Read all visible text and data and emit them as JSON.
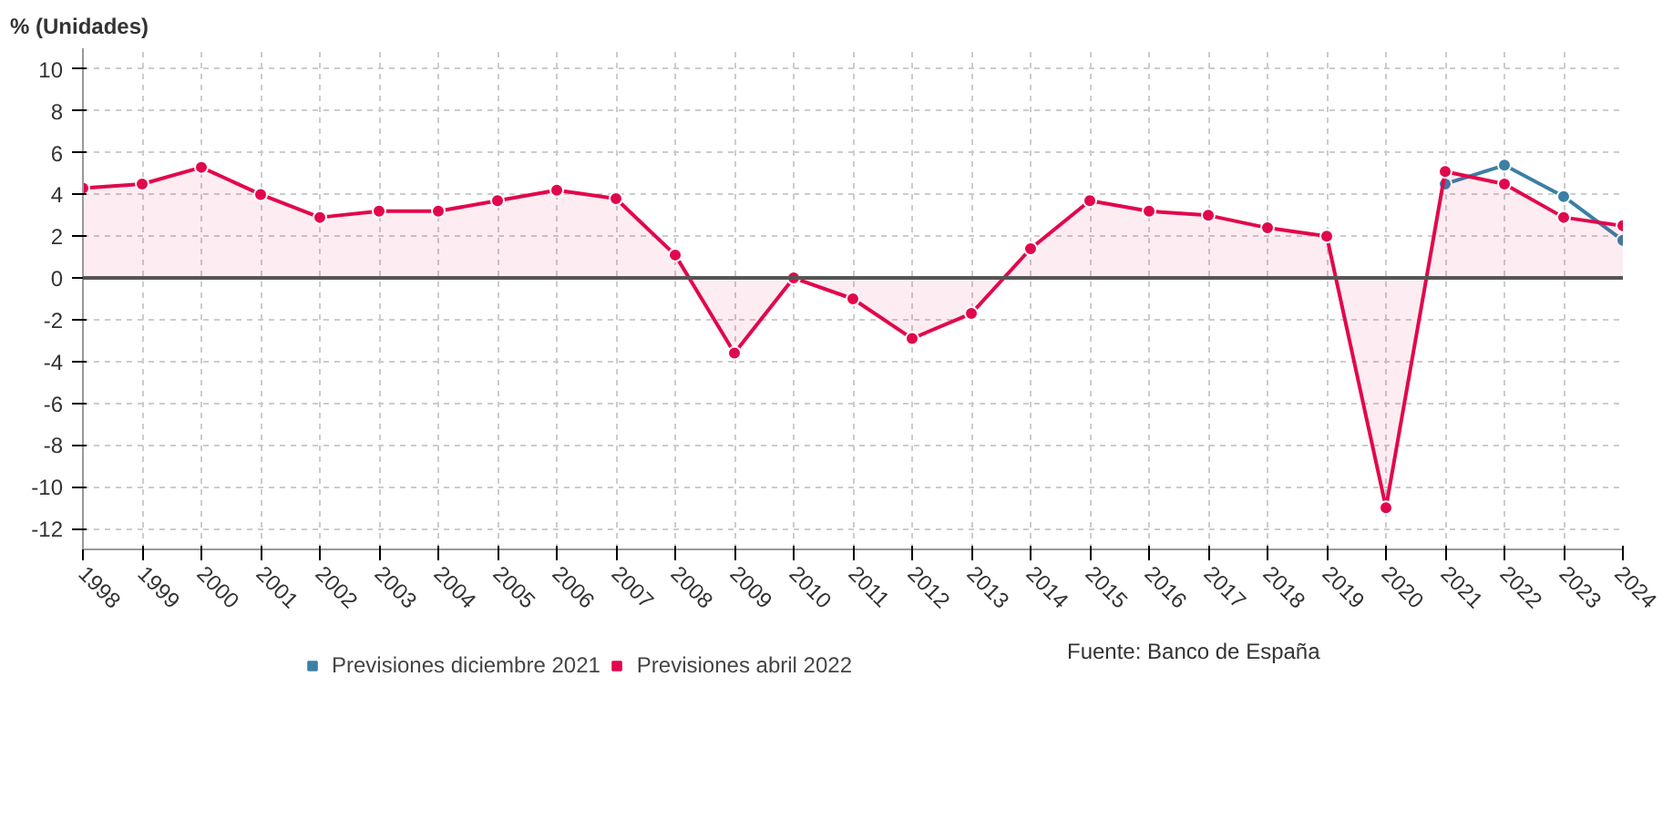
{
  "chart_data": {
    "type": "line",
    "ylabel": "% (Unidades)",
    "x": [
      1998,
      1999,
      2000,
      2001,
      2002,
      2003,
      2004,
      2005,
      2006,
      2007,
      2008,
      2009,
      2010,
      2011,
      2012,
      2013,
      2014,
      2015,
      2016,
      2017,
      2018,
      2019,
      2020,
      2021,
      2022,
      2023,
      2024
    ],
    "series": [
      {
        "name": "Previsiones diciembre 2021",
        "color": "#3b7fa6",
        "x": [
          2021,
          2022,
          2023,
          2024
        ],
        "values": [
          4.5,
          5.4,
          3.9,
          1.8
        ]
      },
      {
        "name": "Previsiones abril 2022",
        "color": "#e2074c",
        "type": "area",
        "values": [
          4.3,
          4.5,
          5.3,
          4.0,
          2.9,
          3.2,
          3.2,
          3.7,
          4.2,
          3.8,
          1.1,
          -3.6,
          0.0,
          -1.0,
          -2.9,
          -1.7,
          1.4,
          3.7,
          3.2,
          3.0,
          2.4,
          2.0,
          -11.0,
          5.1,
          4.5,
          2.9,
          2.5
        ]
      }
    ],
    "xlim": [
      1998,
      2024
    ],
    "xticks": [
      1998,
      1999,
      2000,
      2001,
      2002,
      2003,
      2004,
      2005,
      2006,
      2007,
      2008,
      2009,
      2010,
      2011,
      2012,
      2013,
      2014,
      2015,
      2016,
      2017,
      2018,
      2019,
      2020,
      2021,
      2022,
      2023,
      2024
    ],
    "ylim": [
      -13,
      11
    ],
    "yticks": [
      -12,
      -10,
      -8,
      -6,
      -4,
      -2,
      0,
      2,
      4,
      6,
      8,
      10
    ],
    "ref_lines": [
      {
        "axis": "y",
        "value": 0,
        "color": "#555555",
        "line_style": "solid"
      }
    ],
    "grid": true,
    "legend": "bottom",
    "marker": "circle",
    "line_style": "solid",
    "annotations": [
      "Fuente: Banco de España"
    ]
  }
}
